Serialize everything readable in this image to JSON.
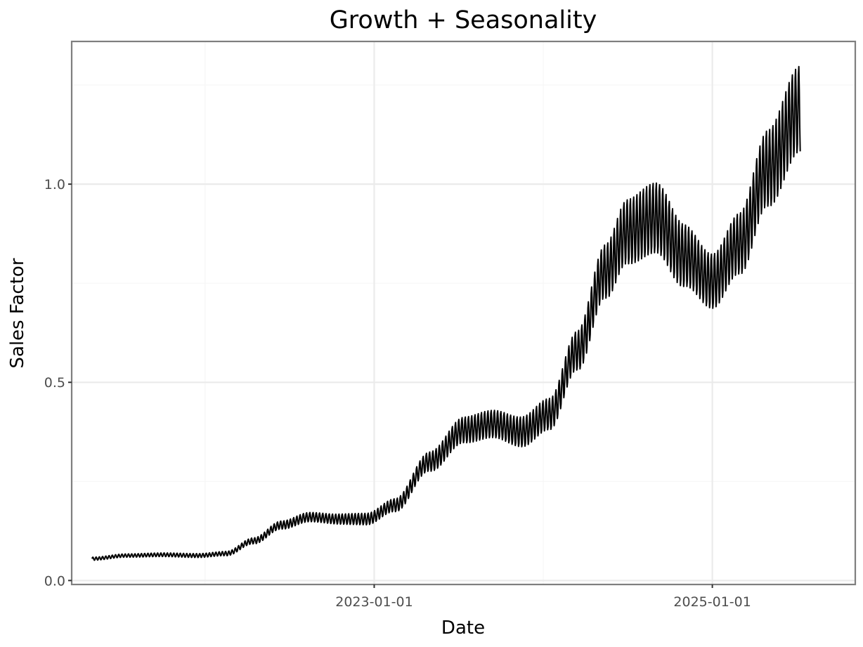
{
  "chart_data": {
    "type": "line",
    "title": "Growth + Seasonality",
    "xlabel": "Date",
    "ylabel": "Sales Factor",
    "x_range": [
      "2021-03-18",
      "2025-11-06"
    ],
    "ylim": [
      -0.01,
      1.36
    ],
    "x_ticks": [
      {
        "value": "2023-01-01",
        "label": "2023-01-01"
      },
      {
        "value": "2025-01-01",
        "label": "2025-01-01"
      }
    ],
    "y_ticks": [
      {
        "value": 0.0,
        "label": "0.0"
      },
      {
        "value": 0.5,
        "label": "0.5"
      },
      {
        "value": 1.0,
        "label": "1.0"
      }
    ],
    "grid": true,
    "legend": "none",
    "line_color": "#000000",
    "frequency": "weekly",
    "series": [
      {
        "x_start": "2021-05-01",
        "x_end": "2025-07-10",
        "trend": [
          {
            "x": "2021-05-01",
            "y": 0.055
          },
          {
            "x": "2021-07-15",
            "y": 0.063
          },
          {
            "x": "2021-10-01",
            "y": 0.065
          },
          {
            "x": "2021-12-15",
            "y": 0.063
          },
          {
            "x": "2022-02-15",
            "y": 0.068
          },
          {
            "x": "2022-04-15",
            "y": 0.1
          },
          {
            "x": "2022-06-15",
            "y": 0.14
          },
          {
            "x": "2022-08-15",
            "y": 0.16
          },
          {
            "x": "2022-10-15",
            "y": 0.155
          },
          {
            "x": "2022-12-15",
            "y": 0.155
          },
          {
            "x": "2023-02-15",
            "y": 0.19
          },
          {
            "x": "2023-05-01",
            "y": 0.3
          },
          {
            "x": "2023-07-15",
            "y": 0.38
          },
          {
            "x": "2023-09-15",
            "y": 0.395
          },
          {
            "x": "2023-11-15",
            "y": 0.375
          },
          {
            "x": "2024-01-15",
            "y": 0.42
          },
          {
            "x": "2024-03-15",
            "y": 0.58
          },
          {
            "x": "2024-05-15",
            "y": 0.78
          },
          {
            "x": "2024-07-01",
            "y": 0.88
          },
          {
            "x": "2024-09-01",
            "y": 0.915
          },
          {
            "x": "2024-11-01",
            "y": 0.82
          },
          {
            "x": "2025-01-01",
            "y": 0.755
          },
          {
            "x": "2025-03-01",
            "y": 0.85
          },
          {
            "x": "2025-05-01",
            "y": 1.04
          },
          {
            "x": "2025-07-10",
            "y": 1.19
          }
        ],
        "weekly_amplitude": [
          {
            "x": "2021-05-01",
            "y": 0.004
          },
          {
            "x": "2022-01-01",
            "y": 0.005
          },
          {
            "x": "2022-09-01",
            "y": 0.012
          },
          {
            "x": "2023-01-01",
            "y": 0.015
          },
          {
            "x": "2023-09-01",
            "y": 0.035
          },
          {
            "x": "2024-01-01",
            "y": 0.04
          },
          {
            "x": "2024-09-01",
            "y": 0.09
          },
          {
            "x": "2025-01-01",
            "y": 0.07
          },
          {
            "x": "2025-07-10",
            "y": 0.11
          }
        ]
      }
    ]
  }
}
